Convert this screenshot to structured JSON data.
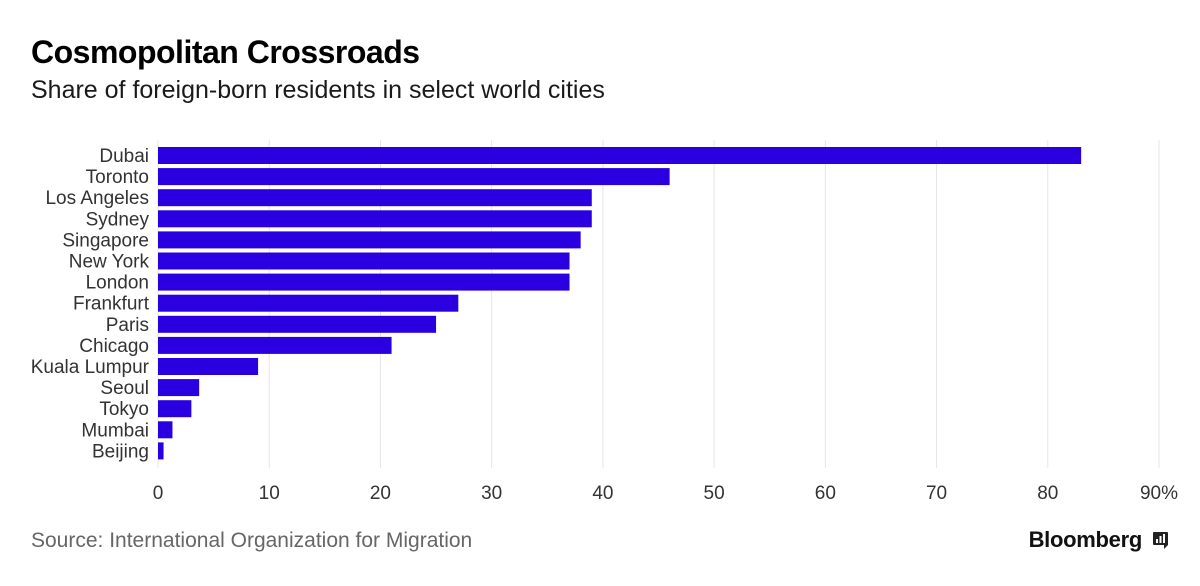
{
  "header": {
    "title": "Cosmopolitan Crossroads",
    "subtitle": "Share of foreign-born residents in select world cities"
  },
  "footer": {
    "source": "Source: International Organization for Migration",
    "brand": "Bloomberg"
  },
  "colors": {
    "bar": "#2a00e0",
    "grid": "#e6e6e6",
    "axis_text": "#333333"
  },
  "chart_data": {
    "type": "bar",
    "orientation": "horizontal",
    "title": "Cosmopolitan Crossroads",
    "subtitle": "Share of foreign-born residents in select world cities",
    "xlabel": "",
    "ylabel": "",
    "xlim": [
      0,
      90
    ],
    "x_ticks": [
      0,
      10,
      20,
      30,
      40,
      50,
      60,
      70,
      80,
      90
    ],
    "x_tick_labels": [
      "0",
      "10",
      "20",
      "30",
      "40",
      "50",
      "60",
      "70",
      "80",
      "90%"
    ],
    "grid": true,
    "categories": [
      "Dubai",
      "Toronto",
      "Los Angeles",
      "Sydney",
      "Singapore",
      "New York",
      "London",
      "Frankfurt",
      "Paris",
      "Chicago",
      "Kuala Lumpur",
      "Seoul",
      "Tokyo",
      "Mumbai",
      "Beijing"
    ],
    "values": [
      83,
      46,
      39,
      39,
      38,
      37,
      37,
      27,
      25,
      21,
      9,
      3.7,
      3,
      1.3,
      0.5
    ]
  }
}
